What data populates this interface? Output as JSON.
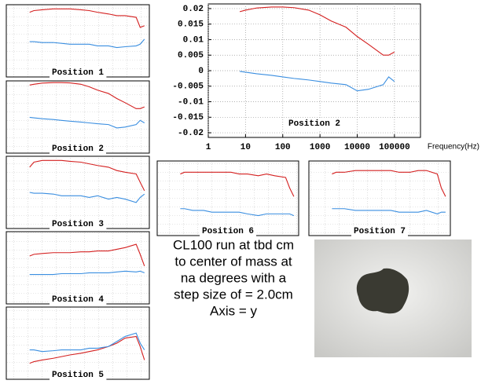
{
  "chart_data": [
    {
      "type": "line",
      "title": "Position 2",
      "xlabel": "Frequency(Hz)",
      "xscale": "log",
      "grid": true,
      "x": [
        7,
        10,
        20,
        50,
        100,
        200,
        500,
        1000,
        2000,
        5000,
        10000,
        20000,
        50000,
        70000,
        100000
      ],
      "series": [
        {
          "color": "#d42020",
          "values": [
            0.019,
            0.0195,
            0.0202,
            0.0205,
            0.0205,
            0.0203,
            0.0195,
            0.018,
            0.016,
            0.014,
            0.011,
            0.0085,
            0.005,
            0.005,
            0.006
          ]
        },
        {
          "color": "#3a8ee0",
          "values": [
            -0.0002,
            -0.0005,
            -0.001,
            -0.0015,
            -0.002,
            -0.0025,
            -0.003,
            -0.0035,
            -0.004,
            -0.0045,
            -0.0065,
            -0.006,
            -0.0045,
            -0.002,
            -0.0035
          ]
        }
      ],
      "xlim": [
        1,
        500000
      ],
      "xticks": [
        1,
        10,
        100,
        1000,
        10000,
        100000
      ],
      "ylim": [
        -0.0215,
        0.0215
      ],
      "yticks": [
        0.02,
        0.015,
        0.01,
        0.005,
        0,
        -0.005,
        -0.01,
        -0.015,
        -0.02
      ]
    },
    {
      "type": "line",
      "title": "Position 1",
      "xscale": "log",
      "x": [
        7,
        10,
        20,
        50,
        100,
        200,
        500,
        1000,
        2000,
        5000,
        10000,
        20000,
        50000,
        70000,
        100000
      ],
      "series": [
        {
          "color": "#d42020",
          "values": [
            0.017,
            0.018,
            0.0185,
            0.019,
            0.019,
            0.019,
            0.0185,
            0.018,
            0.017,
            0.016,
            0.015,
            0.015,
            0.014,
            0.008,
            0.009
          ]
        },
        {
          "color": "#3a8ee0",
          "values": [
            -0.0005,
            -0.0005,
            -0.001,
            -0.001,
            -0.0015,
            -0.002,
            -0.002,
            -0.002,
            -0.003,
            -0.003,
            -0.004,
            -0.0035,
            -0.003,
            -0.002,
            0.001
          ]
        }
      ],
      "xlim": [
        1,
        150000
      ],
      "ylim": [
        -0.0215,
        0.0215
      ]
    },
    {
      "type": "line",
      "title": "Position 2",
      "xscale": "log",
      "x": [
        7,
        10,
        20,
        50,
        100,
        200,
        500,
        1000,
        2000,
        5000,
        10000,
        20000,
        50000,
        70000,
        100000
      ],
      "series": [
        {
          "color": "#d42020",
          "values": [
            0.019,
            0.0195,
            0.0202,
            0.0205,
            0.0205,
            0.0203,
            0.0195,
            0.018,
            0.016,
            0.014,
            0.011,
            0.0085,
            0.005,
            0.005,
            0.006
          ]
        },
        {
          "color": "#3a8ee0",
          "values": [
            -0.0002,
            -0.0005,
            -0.001,
            -0.0015,
            -0.002,
            -0.0025,
            -0.003,
            -0.0035,
            -0.004,
            -0.0045,
            -0.0065,
            -0.006,
            -0.0045,
            -0.002,
            -0.0035
          ]
        }
      ],
      "xlim": [
        1,
        150000
      ],
      "ylim": [
        -0.0215,
        0.0215
      ]
    },
    {
      "type": "line",
      "title": "Position 3",
      "xscale": "log",
      "x": [
        7,
        10,
        20,
        50,
        100,
        200,
        500,
        1000,
        2000,
        5000,
        10000,
        20000,
        50000,
        70000,
        100000
      ],
      "series": [
        {
          "color": "#d42020",
          "values": [
            0.015,
            0.018,
            0.019,
            0.019,
            0.019,
            0.0185,
            0.018,
            0.017,
            0.016,
            0.015,
            0.013,
            0.012,
            0.011,
            0.006,
            0.001
          ]
        },
        {
          "color": "#3a8ee0",
          "values": [
            0,
            -0.0005,
            -0.0005,
            -0.001,
            -0.002,
            -0.002,
            -0.002,
            -0.003,
            -0.002,
            -0.004,
            -0.003,
            -0.004,
            -0.006,
            -0.003,
            -0.001
          ]
        }
      ],
      "xlim": [
        1,
        150000
      ],
      "ylim": [
        -0.0215,
        0.0215
      ]
    },
    {
      "type": "line",
      "title": "Position 4",
      "xscale": "log",
      "x": [
        7,
        10,
        20,
        50,
        100,
        200,
        500,
        1000,
        2000,
        5000,
        10000,
        20000,
        50000,
        70000,
        100000
      ],
      "series": [
        {
          "color": "#d42020",
          "values": [
            0.007,
            0.008,
            0.0085,
            0.009,
            0.009,
            0.009,
            0.0095,
            0.0095,
            0.01,
            0.01,
            0.011,
            0.012,
            0.014,
            0.008,
            0.001
          ]
        },
        {
          "color": "#3a8ee0",
          "values": [
            -0.004,
            -0.004,
            -0.004,
            -0.004,
            -0.0035,
            -0.0035,
            -0.0035,
            -0.003,
            -0.003,
            -0.003,
            -0.0025,
            -0.002,
            -0.0025,
            -0.002,
            -0.003
          ]
        }
      ],
      "xlim": [
        1,
        150000
      ],
      "ylim": [
        -0.0215,
        0.0215
      ]
    },
    {
      "type": "line",
      "title": "Position 5",
      "xscale": "log",
      "x": [
        7,
        10,
        20,
        50,
        100,
        200,
        500,
        1000,
        2000,
        5000,
        10000,
        20000,
        50000,
        70000,
        100000
      ],
      "series": [
        {
          "color": "#d42020",
          "values": [
            -0.012,
            -0.011,
            -0.01,
            -0.009,
            -0.008,
            -0.007,
            -0.006,
            -0.005,
            -0.004,
            -0.002,
            0,
            0.003,
            0.004,
            -0.002,
            -0.01
          ]
        },
        {
          "color": "#3a8ee0",
          "values": [
            -0.004,
            -0.004,
            -0.005,
            -0.0045,
            -0.004,
            -0.004,
            -0.004,
            -0.003,
            -0.003,
            -0.002,
            0.001,
            0.004,
            0.006,
            0,
            -0.004
          ]
        }
      ],
      "xlim": [
        1,
        150000
      ],
      "ylim": [
        -0.0215,
        0.0215
      ]
    },
    {
      "type": "line",
      "title": "Position 6",
      "xscale": "log",
      "x": [
        7,
        10,
        20,
        50,
        100,
        200,
        500,
        1000,
        2000,
        5000,
        10000,
        20000,
        50000,
        70000,
        100000
      ],
      "series": [
        {
          "color": "#d42020",
          "values": [
            0.014,
            0.015,
            0.015,
            0.015,
            0.015,
            0.015,
            0.015,
            0.014,
            0.014,
            0.013,
            0.014,
            0.013,
            0.012,
            0.006,
            0.001
          ]
        },
        {
          "color": "#3a8ee0",
          "values": [
            -0.006,
            -0.006,
            -0.007,
            -0.007,
            -0.008,
            -0.008,
            -0.008,
            -0.008,
            -0.009,
            -0.01,
            -0.009,
            -0.009,
            -0.009,
            -0.009,
            -0.01
          ]
        }
      ],
      "xlim": [
        1,
        150000
      ],
      "ylim": [
        -0.0215,
        0.0215
      ]
    },
    {
      "type": "line",
      "title": "Position 7",
      "xscale": "log",
      "x": [
        7,
        10,
        20,
        50,
        100,
        200,
        500,
        1000,
        2000,
        5000,
        10000,
        20000,
        50000,
        70000,
        100000
      ],
      "series": [
        {
          "color": "#d42020",
          "values": [
            0.014,
            0.015,
            0.015,
            0.016,
            0.016,
            0.016,
            0.016,
            0.016,
            0.015,
            0.015,
            0.016,
            0.016,
            0.014,
            0.006,
            0.001
          ]
        },
        {
          "color": "#3a8ee0",
          "values": [
            -0.006,
            -0.006,
            -0.006,
            -0.007,
            -0.007,
            -0.007,
            -0.007,
            -0.007,
            -0.008,
            -0.008,
            -0.008,
            -0.007,
            -0.009,
            -0.008,
            -0.008
          ]
        }
      ],
      "xlim": [
        1,
        150000
      ],
      "ylim": [
        -0.0215,
        0.0215
      ]
    }
  ],
  "caption": [
    "CL100 run at tbd cm",
    "to center of mass at",
    "na degrees with a",
    "step size of = 2.0cm",
    "Axis = y"
  ]
}
